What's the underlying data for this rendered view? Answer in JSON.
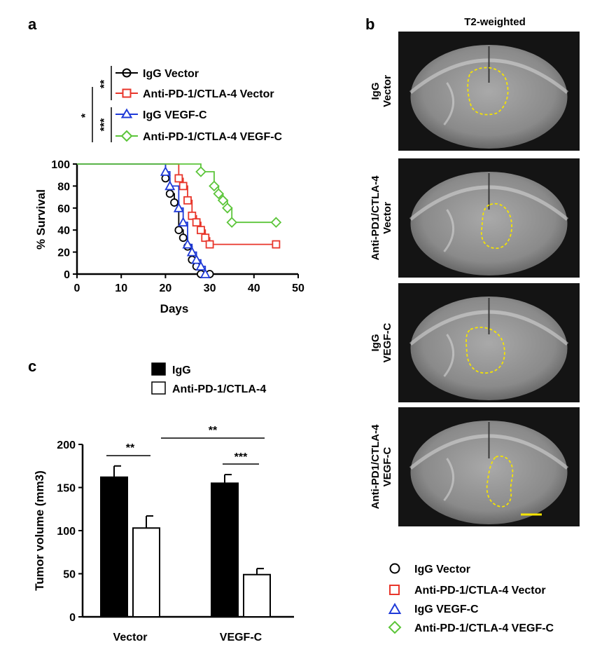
{
  "panel_labels": {
    "a": "a",
    "b": "b",
    "c": "c"
  },
  "colors": {
    "black": "#000000",
    "red": "#e8362b",
    "blue": "#1f3ad8",
    "green": "#5cc53a",
    "outline_yellow": "#f5e400",
    "mri_bg": "#1a1a1a"
  },
  "panel_a": {
    "legend": [
      {
        "label": "IgG  Vector",
        "color": "#000000",
        "marker": "circle"
      },
      {
        "label": "Anti-PD-1/CTLA-4  Vector",
        "color": "#e8362b",
        "marker": "square"
      },
      {
        "label": "IgG  VEGF-C",
        "color": "#1f3ad8",
        "marker": "triangle"
      },
      {
        "label": "Anti-PD-1/CTLA-4  VEGF-C",
        "color": "#5cc53a",
        "marker": "diamond"
      }
    ],
    "significance": {
      "outer": "*",
      "pair1": "**",
      "pair2": "***"
    }
  },
  "panel_b": {
    "title": "T2-weighted",
    "rows": [
      {
        "line1": "IgG",
        "line2": "Vector"
      },
      {
        "line1": "Anti-PD1/CTLA-4",
        "line2": "Vector"
      },
      {
        "line1": "IgG",
        "line2": "VEGF-C"
      },
      {
        "line1": "Anti-PD1/CTLA-4",
        "line2": "VEGF-C"
      }
    ],
    "legend": [
      {
        "label": "IgG Vector",
        "color": "#000000",
        "marker": "circle"
      },
      {
        "label": "Anti-PD-1/CTLA-4 Vector",
        "color": "#e8362b",
        "marker": "square"
      },
      {
        "label": "IgG VEGF-C",
        "color": "#1f3ad8",
        "marker": "triangle"
      },
      {
        "label": "Anti-PD-1/CTLA-4 VEGF-C",
        "color": "#5cc53a",
        "marker": "diamond"
      }
    ]
  },
  "panel_c": {
    "legend": [
      {
        "label": "IgG",
        "fill": "#000000"
      },
      {
        "label": "Anti-PD-1/CTLA-4",
        "fill": "#ffffff"
      }
    ],
    "significance": {
      "vector_pair": "**",
      "vegfc_pair": "***",
      "cross": "**"
    }
  },
  "chart_data": [
    {
      "type": "line",
      "subtype": "kaplan-meier",
      "title": "",
      "xlabel": "Days",
      "ylabel": "% Survival",
      "xlim": [
        0,
        50
      ],
      "ylim": [
        0,
        100
      ],
      "xticks": [
        "0",
        "10",
        "20",
        "30",
        "40",
        "50"
      ],
      "yticks": [
        "0",
        "20",
        "40",
        "60",
        "80",
        "100"
      ],
      "series": [
        {
          "name": "IgG Vector",
          "color": "#000000",
          "marker": "circle",
          "x": [
            0,
            20,
            21,
            22,
            23,
            24,
            25,
            26,
            27,
            28,
            30
          ],
          "y": [
            100,
            87,
            73,
            65,
            40,
            33,
            25,
            13,
            7,
            0,
            0
          ]
        },
        {
          "name": "Anti-PD-1/CTLA-4 Vector",
          "color": "#e8362b",
          "marker": "square",
          "x": [
            0,
            23,
            24,
            25,
            26,
            27,
            28,
            29,
            30,
            45
          ],
          "y": [
            100,
            87,
            80,
            67,
            53,
            47,
            40,
            33,
            27,
            27
          ]
        },
        {
          "name": "IgG VEGF-C",
          "color": "#1f3ad8",
          "marker": "triangle",
          "x": [
            0,
            20,
            21,
            23,
            24,
            25,
            26,
            27,
            28,
            29
          ],
          "y": [
            100,
            93,
            80,
            60,
            47,
            27,
            20,
            13,
            7,
            0
          ]
        },
        {
          "name": "Anti-PD-1/CTLA-4 VEGF-C",
          "color": "#5cc53a",
          "marker": "diamond",
          "x": [
            0,
            28,
            31,
            32,
            33,
            34,
            35,
            45
          ],
          "y": [
            100,
            93,
            80,
            73,
            67,
            60,
            47,
            47
          ]
        }
      ]
    },
    {
      "type": "bar",
      "title": "",
      "xlabel": "",
      "ylabel": "Tumor volume (mm3)",
      "ylim": [
        0,
        200
      ],
      "yticks": [
        "0",
        "50",
        "100",
        "150",
        "200"
      ],
      "categories": [
        "Vector",
        "VEGF-C"
      ],
      "series": [
        {
          "name": "IgG",
          "fill": "#000000",
          "values": [
            162,
            155
          ],
          "errors": [
            13,
            10
          ]
        },
        {
          "name": "Anti-PD-1/CTLA-4",
          "fill": "#ffffff",
          "values": [
            103,
            49
          ],
          "errors": [
            14,
            7
          ]
        }
      ]
    }
  ]
}
